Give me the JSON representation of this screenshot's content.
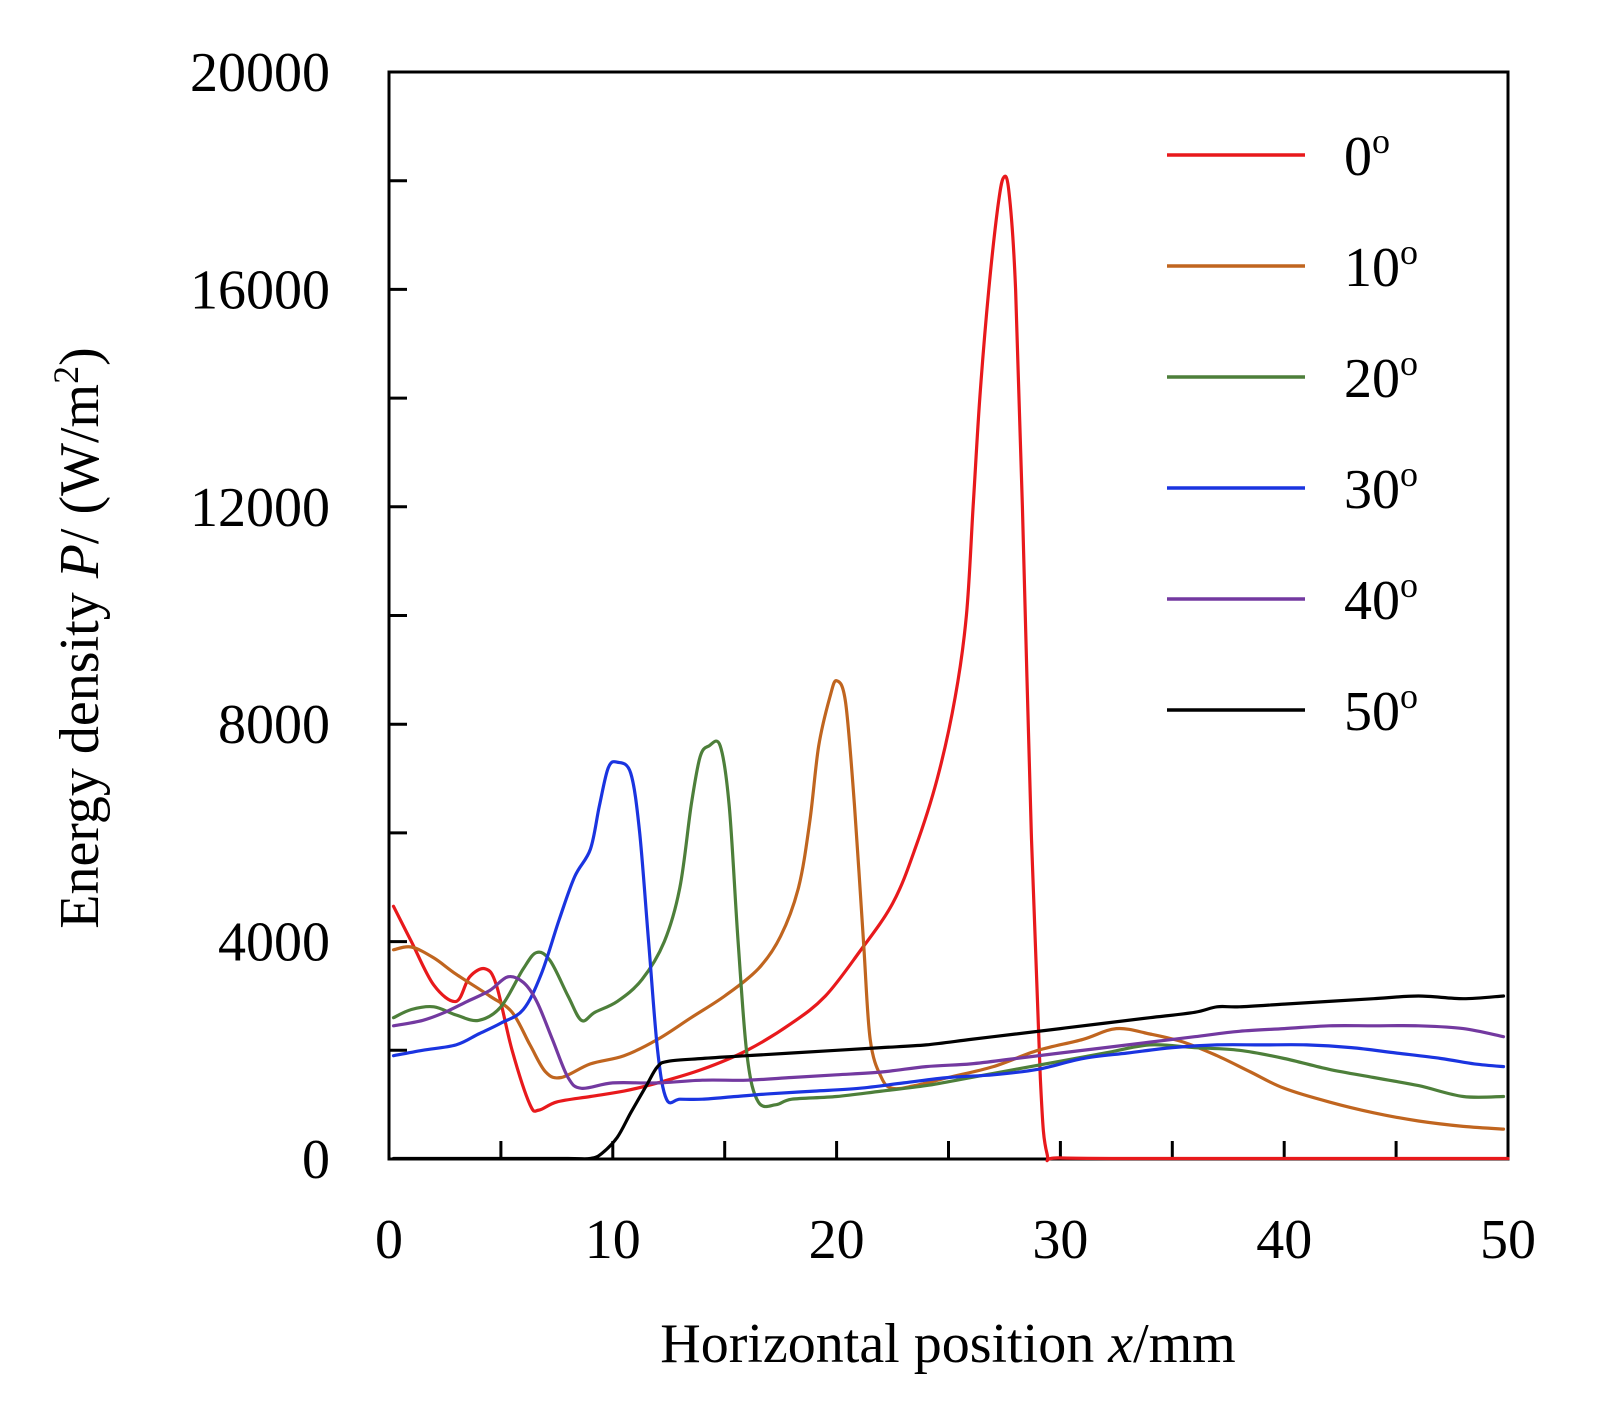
{
  "chart_data": {
    "type": "line",
    "xlabel": "Horizontal position x/mm",
    "xlabel_parts": {
      "text": "Horizontal position ",
      "var": "x",
      "unit": "/mm"
    },
    "ylabel": "Energy density P/ (W/m2)",
    "ylabel_parts": {
      "text": "Energy density ",
      "var": "P",
      "slash": "/ ",
      "unit_open": "(W/m",
      "unit_sup": "2",
      "unit_close": ")"
    },
    "xlim": [
      0,
      50
    ],
    "ylim": [
      0,
      20000
    ],
    "xticks": [
      0,
      10,
      20,
      30,
      40,
      50
    ],
    "xtick_labels": [
      "0",
      "10",
      "20",
      "30",
      "40",
      "50"
    ],
    "xminor": [
      5,
      15,
      25,
      35,
      45
    ],
    "yticks": [
      0,
      4000,
      8000,
      12000,
      16000,
      20000
    ],
    "ytick_labels": [
      "0",
      "4000",
      "8000",
      "12000",
      "16000",
      "20000"
    ],
    "yminor": [
      2000,
      6000,
      10000,
      14000,
      18000
    ],
    "grid": false,
    "legend_position": "top-right",
    "series": [
      {
        "name": "0o",
        "label_main": "0",
        "label_sup": "o",
        "color": "#e8191c",
        "points": [
          [
            0.2,
            4650
          ],
          [
            1.0,
            4000
          ],
          [
            2.0,
            3200
          ],
          [
            3.0,
            2900
          ],
          [
            3.6,
            3350
          ],
          [
            4.3,
            3500
          ],
          [
            4.8,
            3200
          ],
          [
            5.5,
            2000
          ],
          [
            6.3,
            1000
          ],
          [
            6.7,
            900
          ],
          [
            7.5,
            1050
          ],
          [
            9,
            1150
          ],
          [
            10.5,
            1250
          ],
          [
            12,
            1400
          ],
          [
            14,
            1650
          ],
          [
            16,
            2000
          ],
          [
            18,
            2500
          ],
          [
            19.5,
            3000
          ],
          [
            21,
            3800
          ],
          [
            22.5,
            4700
          ],
          [
            23.5,
            5700
          ],
          [
            24.5,
            7000
          ],
          [
            25.3,
            8500
          ],
          [
            25.8,
            10000
          ],
          [
            26.1,
            12000
          ],
          [
            26.4,
            14000
          ],
          [
            26.8,
            16000
          ],
          [
            27.2,
            17500
          ],
          [
            27.45,
            18050
          ],
          [
            27.7,
            17800
          ],
          [
            28.0,
            16000
          ],
          [
            28.3,
            12000
          ],
          [
            28.7,
            6000
          ],
          [
            29.1,
            1500
          ],
          [
            29.4,
            100
          ],
          [
            30,
            20
          ],
          [
            35,
            10
          ],
          [
            50,
            10
          ]
        ]
      },
      {
        "name": "10o",
        "label_main": "10",
        "label_sup": "o",
        "color": "#c0651f",
        "points": [
          [
            0.2,
            3850
          ],
          [
            1.0,
            3900
          ],
          [
            2.0,
            3700
          ],
          [
            3.0,
            3400
          ],
          [
            4.5,
            3000
          ],
          [
            5.5,
            2700
          ],
          [
            6.3,
            2100
          ],
          [
            7.0,
            1600
          ],
          [
            7.7,
            1500
          ],
          [
            9,
            1750
          ],
          [
            10.5,
            1900
          ],
          [
            12,
            2200
          ],
          [
            13.5,
            2600
          ],
          [
            15,
            3000
          ],
          [
            16.5,
            3500
          ],
          [
            17.5,
            4100
          ],
          [
            18.3,
            5000
          ],
          [
            18.8,
            6200
          ],
          [
            19.2,
            7600
          ],
          [
            19.7,
            8500
          ],
          [
            20.0,
            8800
          ],
          [
            20.4,
            8400
          ],
          [
            20.8,
            6500
          ],
          [
            21.2,
            4000
          ],
          [
            21.5,
            2200
          ],
          [
            22.0,
            1500
          ],
          [
            22.5,
            1300
          ],
          [
            23.5,
            1350
          ],
          [
            25,
            1500
          ],
          [
            27,
            1700
          ],
          [
            29,
            2000
          ],
          [
            31,
            2200
          ],
          [
            32.5,
            2400
          ],
          [
            34,
            2300
          ],
          [
            35.5,
            2150
          ],
          [
            37,
            1900
          ],
          [
            38.5,
            1600
          ],
          [
            40,
            1300
          ],
          [
            42,
            1050
          ],
          [
            44,
            850
          ],
          [
            46,
            700
          ],
          [
            48,
            600
          ],
          [
            49.8,
            550
          ]
        ]
      },
      {
        "name": "20o",
        "label_main": "20",
        "label_sup": "o",
        "color": "#4d7f3a",
        "points": [
          [
            0.2,
            2600
          ],
          [
            1.0,
            2750
          ],
          [
            2.0,
            2800
          ],
          [
            3.0,
            2650
          ],
          [
            4.0,
            2550
          ],
          [
            5.0,
            2800
          ],
          [
            6.0,
            3500
          ],
          [
            6.6,
            3800
          ],
          [
            7.2,
            3650
          ],
          [
            8.0,
            3000
          ],
          [
            8.6,
            2550
          ],
          [
            9.2,
            2700
          ],
          [
            10.2,
            2900
          ],
          [
            11.3,
            3300
          ],
          [
            12.3,
            4000
          ],
          [
            13.0,
            5000
          ],
          [
            13.5,
            6500
          ],
          [
            13.9,
            7400
          ],
          [
            14.3,
            7600
          ],
          [
            14.8,
            7600
          ],
          [
            15.2,
            6500
          ],
          [
            15.6,
            4000
          ],
          [
            16.0,
            1900
          ],
          [
            16.5,
            1050
          ],
          [
            17.3,
            1000
          ],
          [
            18,
            1100
          ],
          [
            20,
            1150
          ],
          [
            22,
            1250
          ],
          [
            24,
            1350
          ],
          [
            26,
            1500
          ],
          [
            28,
            1650
          ],
          [
            30,
            1800
          ],
          [
            32,
            1950
          ],
          [
            34,
            2100
          ],
          [
            36,
            2050
          ],
          [
            38,
            2000
          ],
          [
            40,
            1850
          ],
          [
            42,
            1650
          ],
          [
            44,
            1500
          ],
          [
            46,
            1350
          ],
          [
            48,
            1150
          ],
          [
            49.8,
            1150
          ]
        ]
      },
      {
        "name": "30o",
        "label_main": "30",
        "label_sup": "o",
        "color": "#1a34e0",
        "points": [
          [
            0.2,
            1900
          ],
          [
            1.5,
            2000
          ],
          [
            3.0,
            2100
          ],
          [
            4.0,
            2300
          ],
          [
            5.0,
            2500
          ],
          [
            6.0,
            2750
          ],
          [
            6.8,
            3400
          ],
          [
            7.6,
            4400
          ],
          [
            8.3,
            5200
          ],
          [
            9.0,
            5700
          ],
          [
            9.4,
            6500
          ],
          [
            9.8,
            7200
          ],
          [
            10.2,
            7300
          ],
          [
            10.8,
            7100
          ],
          [
            11.2,
            6000
          ],
          [
            11.6,
            4000
          ],
          [
            12.0,
            2000
          ],
          [
            12.4,
            1100
          ],
          [
            13,
            1100
          ],
          [
            14,
            1100
          ],
          [
            15.5,
            1150
          ],
          [
            17,
            1200
          ],
          [
            19,
            1250
          ],
          [
            21,
            1300
          ],
          [
            23,
            1400
          ],
          [
            25,
            1500
          ],
          [
            27,
            1550
          ],
          [
            29,
            1650
          ],
          [
            31,
            1850
          ],
          [
            33,
            1950
          ],
          [
            35,
            2050
          ],
          [
            37,
            2100
          ],
          [
            39,
            2100
          ],
          [
            41,
            2100
          ],
          [
            43,
            2050
          ],
          [
            45,
            1950
          ],
          [
            47,
            1850
          ],
          [
            48.5,
            1750
          ],
          [
            49.8,
            1700
          ]
        ]
      },
      {
        "name": "40o",
        "label_main": "40",
        "label_sup": "o",
        "color": "#7339a0",
        "points": [
          [
            0.2,
            2450
          ],
          [
            1.5,
            2550
          ],
          [
            2.5,
            2700
          ],
          [
            3.5,
            2900
          ],
          [
            4.5,
            3100
          ],
          [
            5.3,
            3350
          ],
          [
            6.0,
            3250
          ],
          [
            6.6,
            2900
          ],
          [
            7.3,
            2200
          ],
          [
            8.0,
            1500
          ],
          [
            8.6,
            1300
          ],
          [
            10,
            1400
          ],
          [
            12,
            1400
          ],
          [
            14,
            1450
          ],
          [
            16,
            1450
          ],
          [
            18,
            1500
          ],
          [
            20,
            1550
          ],
          [
            22,
            1600
          ],
          [
            24,
            1700
          ],
          [
            26,
            1750
          ],
          [
            28,
            1850
          ],
          [
            30,
            1950
          ],
          [
            32,
            2050
          ],
          [
            34,
            2150
          ],
          [
            36,
            2250
          ],
          [
            38,
            2350
          ],
          [
            40,
            2400
          ],
          [
            42,
            2450
          ],
          [
            44,
            2450
          ],
          [
            46,
            2450
          ],
          [
            48,
            2400
          ],
          [
            49.8,
            2250
          ]
        ]
      },
      {
        "name": "50o",
        "label_main": "50",
        "label_sup": "o",
        "color": "#000000",
        "points": [
          [
            0.2,
            10
          ],
          [
            5,
            10
          ],
          [
            8,
            10
          ],
          [
            9,
            10
          ],
          [
            9.5,
            100
          ],
          [
            10.2,
            400
          ],
          [
            10.8,
            850
          ],
          [
            11.5,
            1350
          ],
          [
            12.0,
            1700
          ],
          [
            12.5,
            1800
          ],
          [
            14,
            1850
          ],
          [
            16,
            1900
          ],
          [
            18,
            1950
          ],
          [
            20,
            2000
          ],
          [
            22,
            2050
          ],
          [
            24,
            2100
          ],
          [
            26,
            2200
          ],
          [
            28,
            2300
          ],
          [
            30,
            2400
          ],
          [
            32,
            2500
          ],
          [
            34,
            2600
          ],
          [
            36,
            2700
          ],
          [
            37,
            2800
          ],
          [
            38,
            2800
          ],
          [
            40,
            2850
          ],
          [
            42,
            2900
          ],
          [
            44,
            2950
          ],
          [
            46,
            3000
          ],
          [
            48,
            2950
          ],
          [
            49.8,
            3000
          ]
        ]
      }
    ]
  }
}
